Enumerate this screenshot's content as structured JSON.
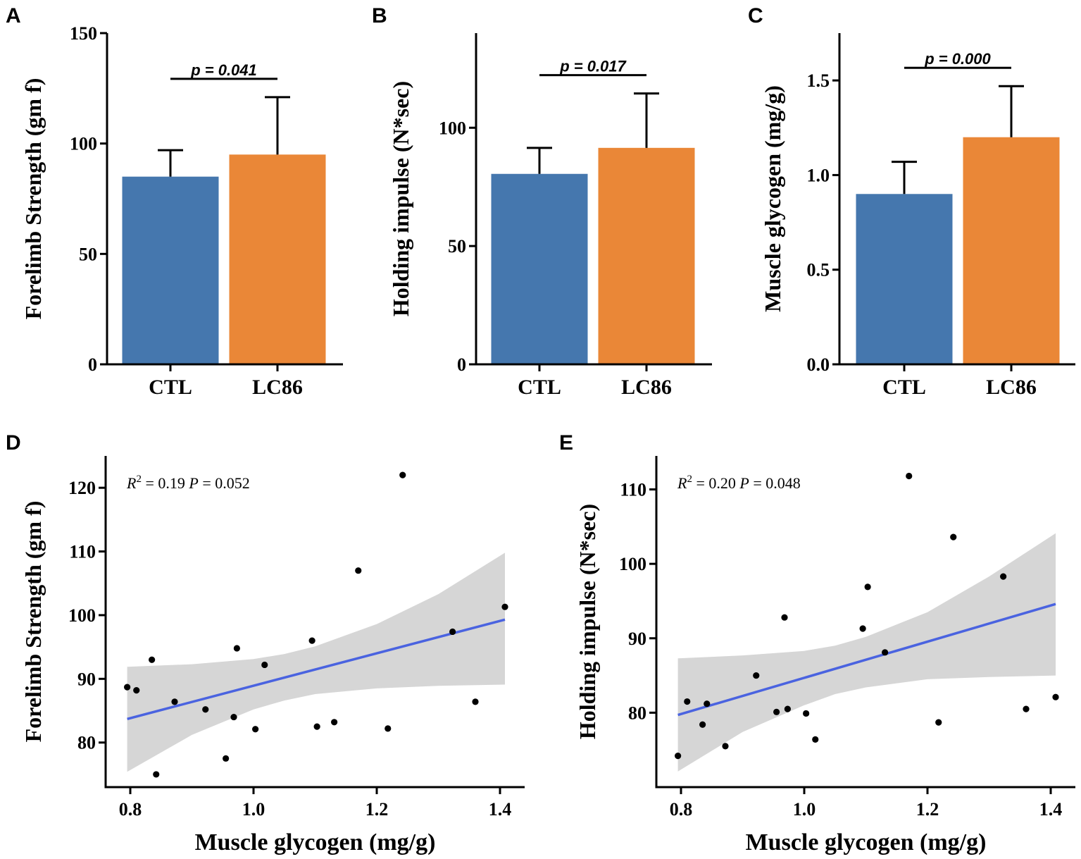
{
  "colors": {
    "ctl": "#4577AE",
    "lc86": "#EA8737",
    "fit": "#4A63E0",
    "band": "#D6D6D6",
    "point": "#000000"
  },
  "chart_data": [
    {
      "panel": "A",
      "type": "bar",
      "categories": [
        "CTL",
        "LC86"
      ],
      "values": [
        85,
        95
      ],
      "errors": [
        12,
        26
      ],
      "ylabel": "Forelimb Strength (gm f)",
      "ylim": [
        0,
        150
      ],
      "yticks": [
        0,
        50,
        100,
        150
      ],
      "ytick_labels": [
        "0",
        "50",
        "100",
        "150"
      ],
      "sig_label": "p = 0.041"
    },
    {
      "panel": "B",
      "type": "bar",
      "categories": [
        "CTL",
        "LC86"
      ],
      "values": [
        80.5,
        91.5
      ],
      "errors": [
        11,
        23
      ],
      "ylabel": "Holding impulse (N*sec)",
      "ylim": [
        0,
        140
      ],
      "yticks": [
        0,
        50,
        100
      ],
      "ytick_labels": [
        "0",
        "50",
        "100"
      ],
      "sig_label": "p = 0.017"
    },
    {
      "panel": "C",
      "type": "bar",
      "categories": [
        "CTL",
        "LC86"
      ],
      "values": [
        0.9,
        1.2
      ],
      "errors": [
        0.17,
        0.27
      ],
      "ylabel": "Muscle glycogen (mg/g)",
      "ylim": [
        0,
        1.75
      ],
      "yticks": [
        0,
        0.5,
        1.0,
        1.5
      ],
      "ytick_labels": [
        "0.0",
        "0.5",
        "1.0",
        "1.5"
      ],
      "sig_label": "p = 0.000"
    },
    {
      "panel": "D",
      "type": "scatter",
      "xlabel": "Muscle glycogen (mg/g)",
      "ylabel": "Forelimb Strength (gm f)",
      "xlim": [
        0.76,
        1.44
      ],
      "ylim": [
        73,
        125
      ],
      "xticks": [
        0.8,
        1.0,
        1.2,
        1.4
      ],
      "xtick_labels": [
        "0.8",
        "1.0",
        "1.2",
        "1.4"
      ],
      "yticks": [
        80,
        90,
        100,
        110,
        120
      ],
      "ytick_labels": [
        "80",
        "90",
        "100",
        "110",
        "120"
      ],
      "stat": {
        "r_symbol": "R",
        "r_exp": "2",
        "r_text": " = 0.19 ",
        "p_symbol": "P",
        "p_text": " = 0.052"
      },
      "points": [
        [
          0.795,
          88.7
        ],
        [
          0.81,
          88.2
        ],
        [
          0.835,
          93.0
        ],
        [
          0.842,
          75.0
        ],
        [
          0.872,
          86.4
        ],
        [
          0.922,
          85.2
        ],
        [
          0.955,
          77.5
        ],
        [
          0.968,
          84.0
        ],
        [
          0.973,
          94.8
        ],
        [
          1.003,
          82.1
        ],
        [
          1.018,
          92.2
        ],
        [
          1.095,
          96.0
        ],
        [
          1.103,
          82.5
        ],
        [
          1.131,
          83.2
        ],
        [
          1.17,
          107.0
        ],
        [
          1.218,
          82.2
        ],
        [
          1.242,
          122.0
        ],
        [
          1.323,
          97.4
        ],
        [
          1.36,
          86.4
        ],
        [
          1.408,
          101.3
        ]
      ],
      "fit": {
        "x": [
          0.795,
          1.408
        ],
        "y": [
          83.7,
          99.3
        ]
      },
      "band": {
        "x": [
          0.795,
          0.9,
          1.0,
          1.05,
          1.1,
          1.2,
          1.3,
          1.408
        ],
        "upper": [
          91.9,
          92.3,
          93.1,
          93.9,
          95.1,
          98.6,
          103.3,
          109.8
        ],
        "lower": [
          75.4,
          81.2,
          85.2,
          86.6,
          87.6,
          88.5,
          88.9,
          89.1
        ]
      }
    },
    {
      "panel": "E",
      "type": "scatter",
      "xlabel": "Muscle glycogen (mg/g)",
      "ylabel": "Holding impulse (N*sec)",
      "xlim": [
        0.76,
        1.44
      ],
      "ylim": [
        70,
        114.5
      ],
      "xticks": [
        0.8,
        1.0,
        1.2,
        1.4
      ],
      "xtick_labels": [
        "0.8",
        "1.0",
        "1.2",
        "1.4"
      ],
      "yticks": [
        80,
        90,
        100,
        110
      ],
      "ytick_labels": [
        "80",
        "90",
        "100",
        "110"
      ],
      "stat": {
        "r_symbol": "R",
        "r_exp": "2",
        "r_text": " = 0.20 ",
        "p_symbol": "P",
        "p_text": " = 0.048"
      },
      "points": [
        [
          0.795,
          74.2
        ],
        [
          0.81,
          81.5
        ],
        [
          0.835,
          78.4
        ],
        [
          0.842,
          81.2
        ],
        [
          0.872,
          75.5
        ],
        [
          0.922,
          85.0
        ],
        [
          0.955,
          80.1
        ],
        [
          0.968,
          92.8
        ],
        [
          0.973,
          80.5
        ],
        [
          1.003,
          79.9
        ],
        [
          1.018,
          76.4
        ],
        [
          1.095,
          91.3
        ],
        [
          1.103,
          96.9
        ],
        [
          1.131,
          88.1
        ],
        [
          1.17,
          111.8
        ],
        [
          1.218,
          78.7
        ],
        [
          1.242,
          103.6
        ],
        [
          1.323,
          98.3
        ],
        [
          1.36,
          80.5
        ],
        [
          1.408,
          82.1
        ]
      ],
      "fit": {
        "x": [
          0.795,
          1.408
        ],
        "y": [
          79.7,
          94.6
        ]
      },
      "band": {
        "x": [
          0.795,
          0.9,
          1.0,
          1.05,
          1.1,
          1.2,
          1.3,
          1.408
        ],
        "upper": [
          87.3,
          87.7,
          88.3,
          89.0,
          90.2,
          93.5,
          98.3,
          104.1
        ],
        "lower": [
          72.1,
          77.4,
          81.0,
          82.5,
          83.4,
          84.5,
          84.8,
          85.0
        ]
      }
    }
  ]
}
